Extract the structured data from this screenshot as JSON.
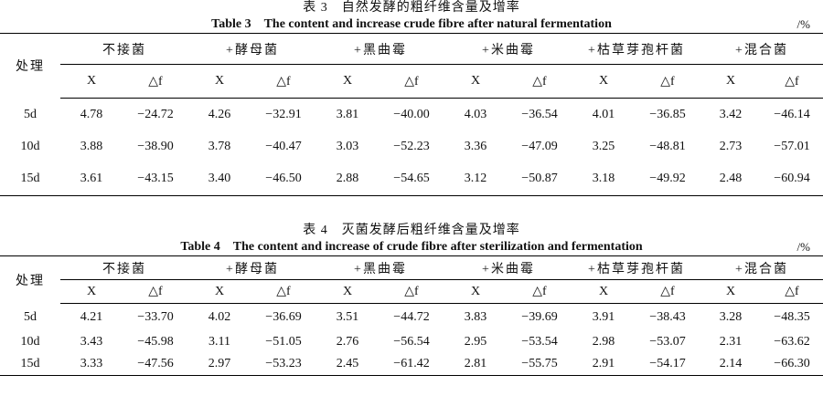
{
  "tables": [
    {
      "caption_cn": "表 3　自然发酵的粗纤维含量及增率",
      "caption_en": "Table 3　The content and increase crude fibre after natural fermentation",
      "unit": "/%",
      "row_header": "处理",
      "groups": [
        "不接菌",
        "+酵母菌",
        "+黑曲霉",
        "+米曲霉",
        "+枯草芽孢杆菌",
        "+混合菌"
      ],
      "sub_headers": [
        "X",
        "△f"
      ],
      "rows": [
        {
          "label": "5d",
          "values": [
            "4.78",
            "−24.72",
            "4.26",
            "−32.91",
            "3.81",
            "−40.00",
            "4.03",
            "−36.54",
            "4.01",
            "−36.85",
            "3.42",
            "−46.14"
          ]
        },
        {
          "label": "10d",
          "values": [
            "3.88",
            "−38.90",
            "3.78",
            "−40.47",
            "3.03",
            "−52.23",
            "3.36",
            "−47.09",
            "3.25",
            "−48.81",
            "2.73",
            "−57.01"
          ]
        },
        {
          "label": "15d",
          "values": [
            "3.61",
            "−43.15",
            "3.40",
            "−46.50",
            "2.88",
            "−54.65",
            "3.12",
            "−50.87",
            "3.18",
            "−49.92",
            "2.48",
            "−60.94"
          ]
        }
      ]
    },
    {
      "caption_cn": "表 4　灭菌发酵后粗纤维含量及增率",
      "caption_en": "Table 4　The content and increase of crude fibre after sterilization and fermentation",
      "unit": "/%",
      "row_header": "处理",
      "groups": [
        "不接菌",
        "+酵母菌",
        "+黑曲霉",
        "+米曲霉",
        "+枯草芽孢杆菌",
        "+混合菌"
      ],
      "sub_headers": [
        "X",
        "△f"
      ],
      "rows": [
        {
          "label": "5d",
          "values": [
            "4.21",
            "−33.70",
            "4.02",
            "−36.69",
            "3.51",
            "−44.72",
            "3.83",
            "−39.69",
            "3.91",
            "−38.43",
            "3.28",
            "−48.35"
          ]
        },
        {
          "label": "10d",
          "values": [
            "3.43",
            "−45.98",
            "3.11",
            "−51.05",
            "2.76",
            "−56.54",
            "2.95",
            "−53.54",
            "2.98",
            "−53.07",
            "2.31",
            "−63.62"
          ]
        },
        {
          "label": "15d",
          "values": [
            "3.33",
            "−47.56",
            "2.97",
            "−53.23",
            "2.45",
            "−61.42",
            "2.81",
            "−55.75",
            "2.91",
            "−54.17",
            "2.14",
            "−66.30"
          ]
        }
      ]
    }
  ]
}
